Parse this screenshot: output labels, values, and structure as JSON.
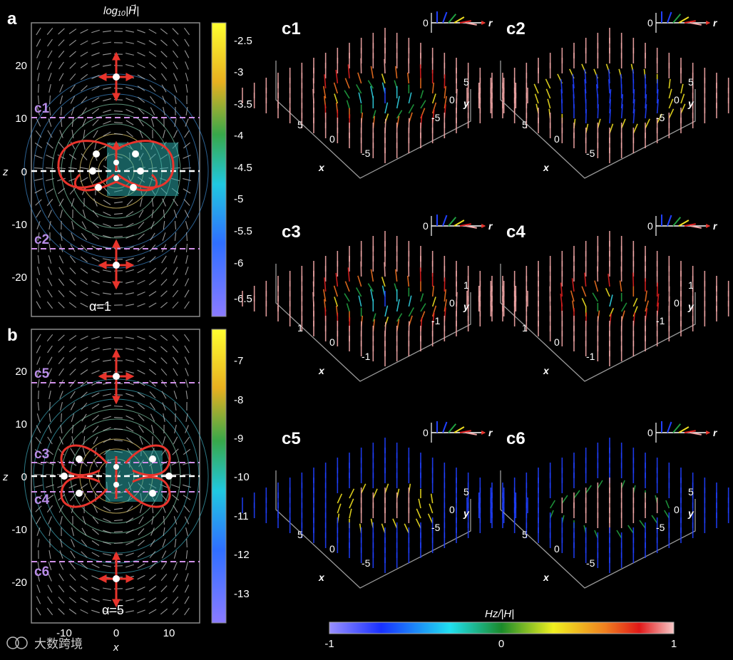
{
  "panel_a": {
    "label": "a",
    "colorbar_title": "log₁₀|H⃗|",
    "colorbar_ticks": [
      "-2.5",
      "-3",
      "-3.5",
      "-4",
      "-4.5",
      "-5",
      "-5.5",
      "-6",
      "-6.5"
    ],
    "y_ticks": [
      "20",
      "10",
      "0",
      "-10",
      "-20"
    ],
    "y_label": "z",
    "cut_labels": [
      "c1",
      "c2"
    ],
    "alpha": "α=1"
  },
  "panel_b": {
    "label": "b",
    "colorbar_ticks": [
      "-7",
      "-8",
      "-9",
      "-10",
      "-11",
      "-12",
      "-13"
    ],
    "y_ticks": [
      "20",
      "10",
      "0",
      "-10",
      "-20"
    ],
    "x_ticks": [
      "-10",
      "0",
      "10"
    ],
    "y_label": "z",
    "x_label": "x",
    "cut_labels": [
      "c5",
      "c3",
      "c4",
      "c6"
    ],
    "alpha": "α=5"
  },
  "panels_c": [
    {
      "label": "c1",
      "ticks": [
        "5",
        "0",
        "-5"
      ],
      "inset_zero": "0",
      "inset_r": "r"
    },
    {
      "label": "c2",
      "ticks": [
        "5",
        "0",
        "-5"
      ],
      "inset_zero": "0",
      "inset_r": "r"
    },
    {
      "label": "c3",
      "ticks": [
        "1",
        "0",
        "-1"
      ],
      "inset_zero": "0",
      "inset_r": "r"
    },
    {
      "label": "c4",
      "ticks": [
        "1",
        "0",
        "-1"
      ],
      "inset_zero": "0",
      "inset_r": "r"
    },
    {
      "label": "c5",
      "ticks": [
        "5",
        "0",
        "-5"
      ],
      "inset_zero": "0",
      "inset_r": "r"
    },
    {
      "label": "c6",
      "ticks": [
        "5",
        "0",
        "-5"
      ],
      "inset_zero": "0",
      "inset_r": "r"
    }
  ],
  "axis_x": "x",
  "axis_y": "y",
  "bottom_colorbar": {
    "title": "Hz/|H|",
    "ticks": [
      "-1",
      "0",
      "1"
    ]
  },
  "watermark": "大数跨境",
  "colors": {
    "salmon": "#f4a0a0",
    "blue": "#7a7cf5",
    "red": "#e8342c"
  }
}
